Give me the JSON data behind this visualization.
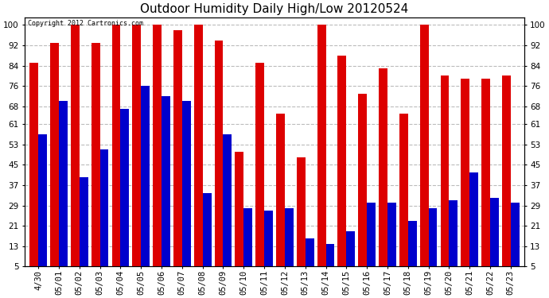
{
  "title": "Outdoor Humidity Daily High/Low 20120524",
  "copyright": "Copyright 2012 Cartronics.com",
  "dates": [
    "4/30",
    "05/01",
    "05/02",
    "05/03",
    "05/04",
    "05/05",
    "05/06",
    "05/07",
    "05/08",
    "05/09",
    "05/10",
    "05/11",
    "05/12",
    "05/13",
    "05/14",
    "05/15",
    "05/16",
    "05/17",
    "05/18",
    "05/19",
    "05/20",
    "05/21",
    "05/22",
    "05/23"
  ],
  "highs": [
    85,
    93,
    100,
    93,
    100,
    100,
    100,
    98,
    100,
    94,
    50,
    85,
    65,
    48,
    100,
    88,
    73,
    83,
    65,
    100,
    80,
    79,
    79,
    80
  ],
  "lows": [
    57,
    70,
    40,
    51,
    67,
    76,
    72,
    70,
    34,
    57,
    28,
    27,
    28,
    16,
    14,
    19,
    30,
    30,
    23,
    28,
    31,
    42,
    32,
    30
  ],
  "high_color": "#dd0000",
  "low_color": "#0000cc",
  "background_color": "#ffffff",
  "grid_color": "#bbbbbb",
  "yticks": [
    5,
    13,
    21,
    29,
    37,
    45,
    53,
    61,
    68,
    76,
    84,
    92,
    100
  ],
  "ylim": [
    5,
    103
  ],
  "bar_width": 0.42,
  "title_fontsize": 11,
  "tick_fontsize": 7.5,
  "copyright_fontsize": 6
}
